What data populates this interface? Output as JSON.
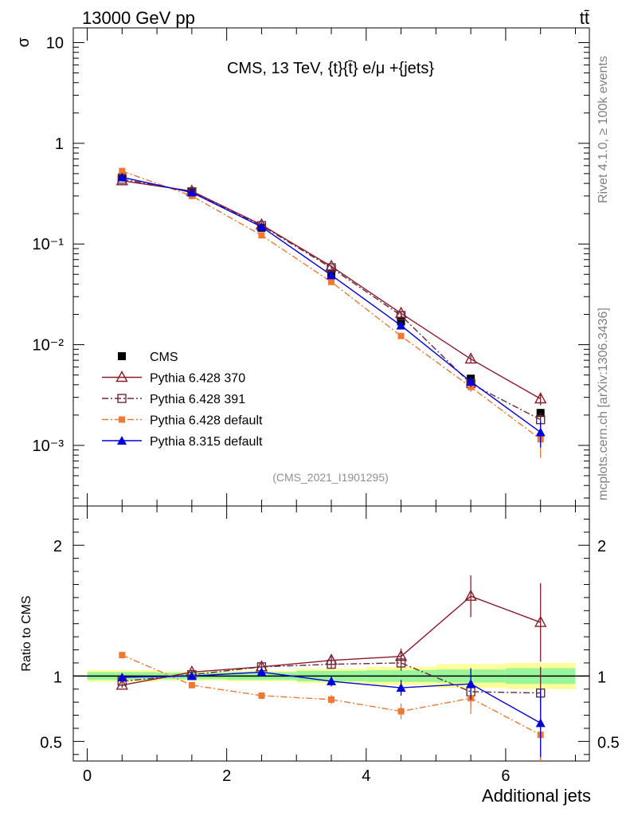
{
  "header": {
    "left_label": "13000 GeV pp",
    "right_label": "tt̄"
  },
  "side_labels": {
    "rivet": "Rivet 4.1.0, ≥ 100k events",
    "mcplots": "mcplots.cern.ch [arXiv:1306.3436]"
  },
  "chart_data": [
    {
      "type": "line",
      "panel": "main",
      "title": "CMS, 13 TeV, {t}{t̄} e/μ +{jets}",
      "ylabel": "σ",
      "xlabel": "Additional jets",
      "yscale": "log",
      "xlim": [
        -0.2,
        7.2
      ],
      "ylim": [
        0.00025,
        14
      ],
      "x": [
        0.5,
        1.5,
        2.5,
        3.5,
        4.5,
        5.5,
        6.5
      ],
      "y_tick_labels": [
        "10⁻³",
        "10⁻²",
        "10⁻¹",
        "1",
        "10"
      ],
      "watermark": "(CMS_2021_I1901295)",
      "legend_position": "lower-left",
      "series": [
        {
          "name": "CMS",
          "values": [
            0.46,
            0.325,
            0.145,
            0.051,
            0.017,
            0.0046,
            0.0021
          ],
          "errors": [
            0.01,
            0.008,
            0.004,
            0.002,
            0.0008,
            0.0003,
            0.0002
          ],
          "color": "#000000",
          "marker": "square-filled",
          "line": "none"
        },
        {
          "name": "Pythia 6.428 370",
          "values": [
            0.425,
            0.335,
            0.155,
            0.06,
            0.0205,
            0.0072,
            0.0029
          ],
          "errors": [
            0.008,
            0.006,
            0.003,
            0.0015,
            0.0008,
            0.0006,
            0.0004
          ],
          "color": "#8b1a2a",
          "marker": "triangle-open",
          "line": "solid"
        },
        {
          "name": "Pythia 6.428 391",
          "values": [
            0.44,
            0.33,
            0.152,
            0.058,
            0.0195,
            0.0041,
            0.0018
          ],
          "errors": [
            0.008,
            0.006,
            0.003,
            0.0015,
            0.0008,
            0.0005,
            0.0003
          ],
          "color": "#6b2a3a",
          "marker": "square-open",
          "line": "dashdot"
        },
        {
          "name": "Pythia 6.428 default",
          "values": [
            0.53,
            0.3,
            0.122,
            0.042,
            0.0122,
            0.0038,
            0.00115
          ],
          "errors": [
            0.01,
            0.006,
            0.003,
            0.0015,
            0.0007,
            0.0004,
            0.0004
          ],
          "color": "#f07830",
          "marker": "square-filled-small",
          "line": "dashdot"
        },
        {
          "name": "Pythia 8.315 default",
          "values": [
            0.46,
            0.325,
            0.148,
            0.049,
            0.0155,
            0.0043,
            0.00135
          ],
          "errors": [
            0.008,
            0.006,
            0.003,
            0.0015,
            0.0008,
            0.0005,
            0.0004
          ],
          "color": "#0000dd",
          "marker": "triangle-filled",
          "line": "solid"
        }
      ]
    },
    {
      "type": "line",
      "panel": "ratio",
      "ylabel": "Ratio to CMS",
      "xlabel": "Additional jets",
      "xlim": [
        -0.2,
        7.2
      ],
      "ylim": [
        0.35,
        2.3
      ],
      "x": [
        0.5,
        1.5,
        2.5,
        3.5,
        4.5,
        5.5,
        6.5
      ],
      "x_ticks": [
        0,
        2,
        4,
        6
      ],
      "y_ticks": [
        0.5,
        1,
        2
      ],
      "bands": {
        "inner_color": "#99f599",
        "outer_color": "#ffff99",
        "bins": [
          {
            "lo": 0,
            "hi": 1,
            "inner": [
              0.97,
              1.03
            ],
            "outer": [
              0.955,
              1.045
            ]
          },
          {
            "lo": 1,
            "hi": 2,
            "inner": [
              0.975,
              1.025
            ],
            "outer": [
              0.965,
              1.035
            ]
          },
          {
            "lo": 2,
            "hi": 3,
            "inner": [
              0.97,
              1.03
            ],
            "outer": [
              0.96,
              1.04
            ]
          },
          {
            "lo": 3,
            "hi": 4,
            "inner": [
              0.96,
              1.04
            ],
            "outer": [
              0.945,
              1.055
            ]
          },
          {
            "lo": 4,
            "hi": 5,
            "inner": [
              0.955,
              1.045
            ],
            "outer": [
              0.93,
              1.07
            ]
          },
          {
            "lo": 5,
            "hi": 6,
            "inner": [
              0.95,
              1.05
            ],
            "outer": [
              0.91,
              1.09
            ]
          },
          {
            "lo": 6,
            "hi": 7,
            "inner": [
              0.94,
              1.06
            ],
            "outer": [
              0.9,
              1.1
            ]
          }
        ]
      },
      "series": [
        {
          "name": "Pythia 6.428 370",
          "values": [
            0.93,
            1.03,
            1.07,
            1.12,
            1.15,
            1.61,
            1.41
          ],
          "errors": [
            0.02,
            0.02,
            0.025,
            0.035,
            0.06,
            0.16,
            0.3
          ],
          "color": "#8b1a2a",
          "marker": "triangle-open",
          "line": "solid"
        },
        {
          "name": "Pythia 6.428 391",
          "values": [
            0.96,
            1.01,
            1.07,
            1.09,
            1.1,
            0.88,
            0.87
          ],
          "errors": [
            0.02,
            0.02,
            0.025,
            0.035,
            0.06,
            0.12,
            0.2
          ],
          "color": "#6b2a3a",
          "marker": "square-open",
          "line": "dashdot"
        },
        {
          "name": "Pythia 6.428 default",
          "values": [
            1.16,
            0.93,
            0.85,
            0.82,
            0.73,
            0.83,
            0.55
          ],
          "errors": [
            0.02,
            0.015,
            0.025,
            0.035,
            0.06,
            0.12,
            0.2
          ],
          "color": "#f07830",
          "marker": "square-filled-small",
          "line": "dashdot"
        },
        {
          "name": "Pythia 8.315 default",
          "values": [
            0.99,
            1.0,
            1.03,
            0.96,
            0.91,
            0.94,
            0.64
          ],
          "errors": [
            0.02,
            0.015,
            0.025,
            0.04,
            0.06,
            0.12,
            0.26
          ],
          "color": "#0000dd",
          "marker": "triangle-filled",
          "line": "solid"
        }
      ]
    }
  ]
}
